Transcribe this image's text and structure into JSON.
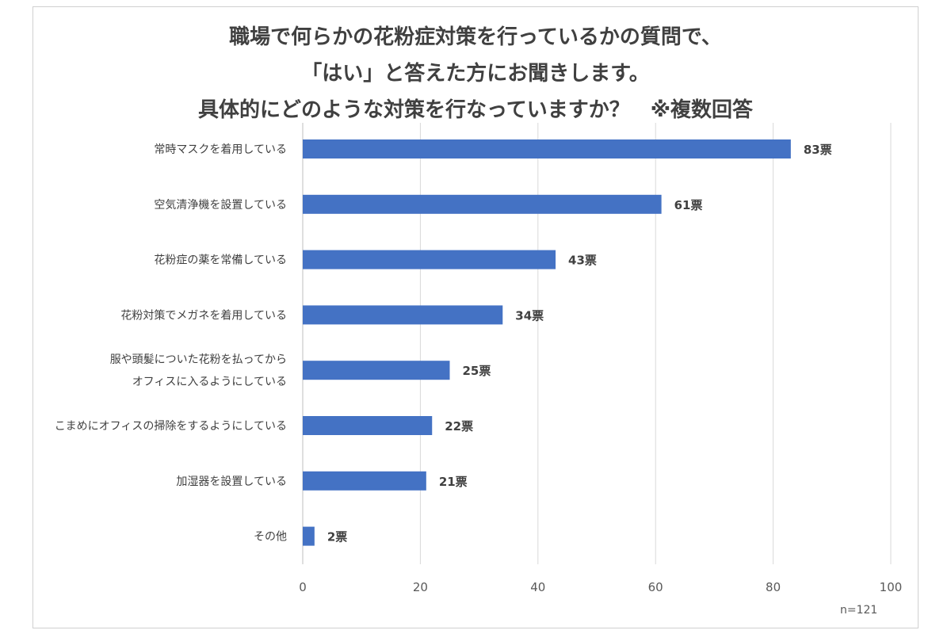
{
  "chart_data": {
    "type": "bar",
    "orientation": "horizontal",
    "title_lines": [
      "職場で何らかの花粉症対策を行っているかの質問で、",
      "「はい」と答えた方にお聞きします。",
      "具体的にどのような対策を行なっていますか？　※複数回答"
    ],
    "categories": [
      [
        "常時マスクを着用している"
      ],
      [
        "空気清浄機を設置している"
      ],
      [
        "花粉症の薬を常備している"
      ],
      [
        "花粉対策でメガネを着用している"
      ],
      [
        "服や頭髪についた花粉を払ってから",
        "オフィスに入るようにしている"
      ],
      [
        "こまめにオフィスの掃除をするようにしている"
      ],
      [
        "加湿器を設置している"
      ],
      [
        "その他"
      ]
    ],
    "values": [
      83,
      61,
      43,
      34,
      25,
      22,
      21,
      2
    ],
    "value_labels": [
      "83票",
      "61票",
      "43票",
      "34票",
      "25票",
      "22票",
      "21票",
      "2票"
    ],
    "xlim": [
      0,
      100
    ],
    "x_ticks": [
      0,
      20,
      40,
      60,
      80,
      100
    ],
    "grid": true,
    "bar_color": "#4472c4",
    "note": "n=121"
  }
}
